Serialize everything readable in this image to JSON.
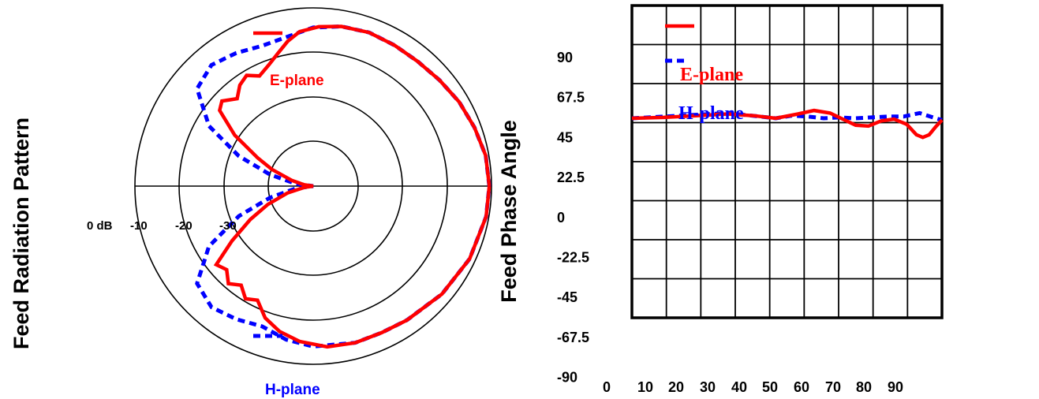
{
  "colors": {
    "e_plane": "#ff0000",
    "h_plane": "#0000ff",
    "grid": "#000000",
    "background": "#ffffff"
  },
  "chart_data": [
    {
      "type": "polar-line",
      "ylabel": "Feed Radiation Pattern",
      "radial_unit": "dB",
      "radial_tick_labels": [
        "0 dB",
        "-10",
        "-20",
        "-30"
      ],
      "rings_db": [
        0,
        -10,
        -20,
        -30
      ],
      "angle_convention": "degrees, 0 = right (+x), counter-clockwise positive",
      "legend": {
        "placement": "top / bottom of plot"
      },
      "series": [
        {
          "name": "E-plane",
          "style": "solid",
          "points_deg_db": [
            [
              0,
              -0.5
            ],
            [
              10,
              -0.7
            ],
            [
              20,
              -1.5
            ],
            [
              30,
              -2.2
            ],
            [
              40,
              -3
            ],
            [
              50,
              -3.5
            ],
            [
              60,
              -3.5
            ],
            [
              70,
              -3.3
            ],
            [
              80,
              -3.6
            ],
            [
              88,
              -4.2
            ],
            [
              95,
              -5.2
            ],
            [
              100,
              -7.0
            ],
            [
              105,
              -9.2
            ],
            [
              110,
              -11
            ],
            [
              116,
              -12.5
            ],
            [
              121,
              -11
            ],
            [
              126,
              -12
            ],
            [
              131,
              -14
            ],
            [
              137,
              -12
            ],
            [
              141,
              -13
            ],
            [
              147,
              -19
            ],
            [
              153,
              -26
            ],
            [
              158,
              -30
            ],
            [
              165,
              -35
            ],
            [
              172,
              -38
            ],
            [
              178,
              -40
            ],
            [
              180,
              -40
            ],
            [
              182,
              -40
            ],
            [
              188,
              -38
            ],
            [
              195,
              -34
            ],
            [
              202,
              -29
            ],
            [
              208,
              -24
            ],
            [
              214,
              -18
            ],
            [
              219,
              -12
            ],
            [
              224,
              -13
            ],
            [
              229,
              -11
            ],
            [
              234,
              -12.5
            ],
            [
              239,
              -10.5
            ],
            [
              244,
              -11.5
            ],
            [
              250,
              -8.5
            ],
            [
              257,
              -6.5
            ],
            [
              265,
              -5
            ],
            [
              275,
              -3.8
            ],
            [
              285,
              -3.6
            ],
            [
              295,
              -3.7
            ],
            [
              305,
              -3.3
            ],
            [
              320,
              -2.3
            ],
            [
              335,
              -1.3
            ],
            [
              350,
              -0.6
            ],
            [
              360,
              -0.5
            ]
          ]
        },
        {
          "name": "H-plane",
          "style": "dashed",
          "points_deg_db": [
            [
              0,
              -0.5
            ],
            [
              10,
              -0.7
            ],
            [
              20,
              -1.5
            ],
            [
              30,
              -2.2
            ],
            [
              40,
              -3
            ],
            [
              50,
              -3.5
            ],
            [
              60,
              -3.5
            ],
            [
              70,
              -3.3
            ],
            [
              80,
              -3.6
            ],
            [
              90,
              -4.4
            ],
            [
              100,
              -6
            ],
            [
              110,
              -6.5
            ],
            [
              120,
              -5.5
            ],
            [
              130,
              -4.5
            ],
            [
              140,
              -6
            ],
            [
              150,
              -13
            ],
            [
              158,
              -22
            ],
            [
              165,
              -30
            ],
            [
              172,
              -36
            ],
            [
              178,
              -40
            ],
            [
              180,
              -40
            ],
            [
              182,
              -40
            ],
            [
              188,
              -36
            ],
            [
              195,
              -30
            ],
            [
              202,
              -22
            ],
            [
              210,
              -13
            ],
            [
              220,
              -6
            ],
            [
              230,
              -4.5
            ],
            [
              240,
              -5.5
            ],
            [
              250,
              -6.5
            ],
            [
              260,
              -5
            ],
            [
              270,
              -4
            ],
            [
              285,
              -3.6
            ],
            [
              295,
              -3.7
            ],
            [
              305,
              -3.3
            ],
            [
              320,
              -2.3
            ],
            [
              335,
              -1.3
            ],
            [
              350,
              -0.6
            ],
            [
              360,
              -0.5
            ]
          ]
        }
      ]
    },
    {
      "type": "line",
      "ylabel": "Feed Phase Angle",
      "xlabel": "",
      "x_tick_labels": [
        "0",
        "10",
        "20",
        "30",
        "40",
        "50",
        "60",
        "70",
        "80",
        "90"
      ],
      "y_tick_labels": [
        "90",
        "67.5",
        "45",
        "22.5",
        "0",
        "-22.5",
        "-45",
        "-67.5",
        "-90"
      ],
      "xlim": [
        0,
        97
      ],
      "ylim": [
        -90,
        90
      ],
      "grid": true,
      "legend": {
        "placement": "top-left inside plot",
        "entries": [
          "E-plane",
          "H-plane"
        ]
      },
      "series": [
        {
          "name": "E-plane",
          "style": "solid",
          "x": [
            0,
            10,
            20,
            30,
            38,
            45,
            52,
            57,
            62,
            66,
            70,
            74,
            78,
            82,
            86,
            89,
            91,
            93,
            95,
            97
          ],
          "y": [
            25,
            25.5,
            26.5,
            27.5,
            26.5,
            25,
            27.5,
            29.5,
            28,
            24.5,
            21,
            20.5,
            23.5,
            24.5,
            21.5,
            15.5,
            14,
            15.5,
            20,
            24
          ]
        },
        {
          "name": "H-plane",
          "style": "dashed",
          "x": [
            0,
            10,
            20,
            30,
            40,
            45,
            50,
            55,
            60,
            65,
            70,
            75,
            80,
            85,
            90,
            95,
            97
          ],
          "y": [
            25,
            26,
            27,
            28,
            26,
            25,
            26.5,
            26,
            25,
            25.5,
            25,
            25.5,
            26,
            26,
            28,
            25,
            24
          ]
        }
      ]
    }
  ],
  "polar": {
    "ylabel": "Feed Radiation Pattern",
    "legend_e": "E-plane",
    "legend_h": "H-plane",
    "ticks": [
      "0 dB",
      "-10",
      "-20",
      "-30"
    ]
  },
  "phase": {
    "ylabel": "Feed Phase Angle",
    "legend_e": "E-plane",
    "legend_h": "H-plane",
    "y_ticks": [
      "90",
      "67.5",
      "45",
      "22.5",
      "0",
      "-22.5",
      "-45",
      "-67.5",
      "-90"
    ],
    "x_ticks": [
      "0",
      "10",
      "20",
      "30",
      "40",
      "50",
      "60",
      "70",
      "80",
      "90"
    ]
  }
}
